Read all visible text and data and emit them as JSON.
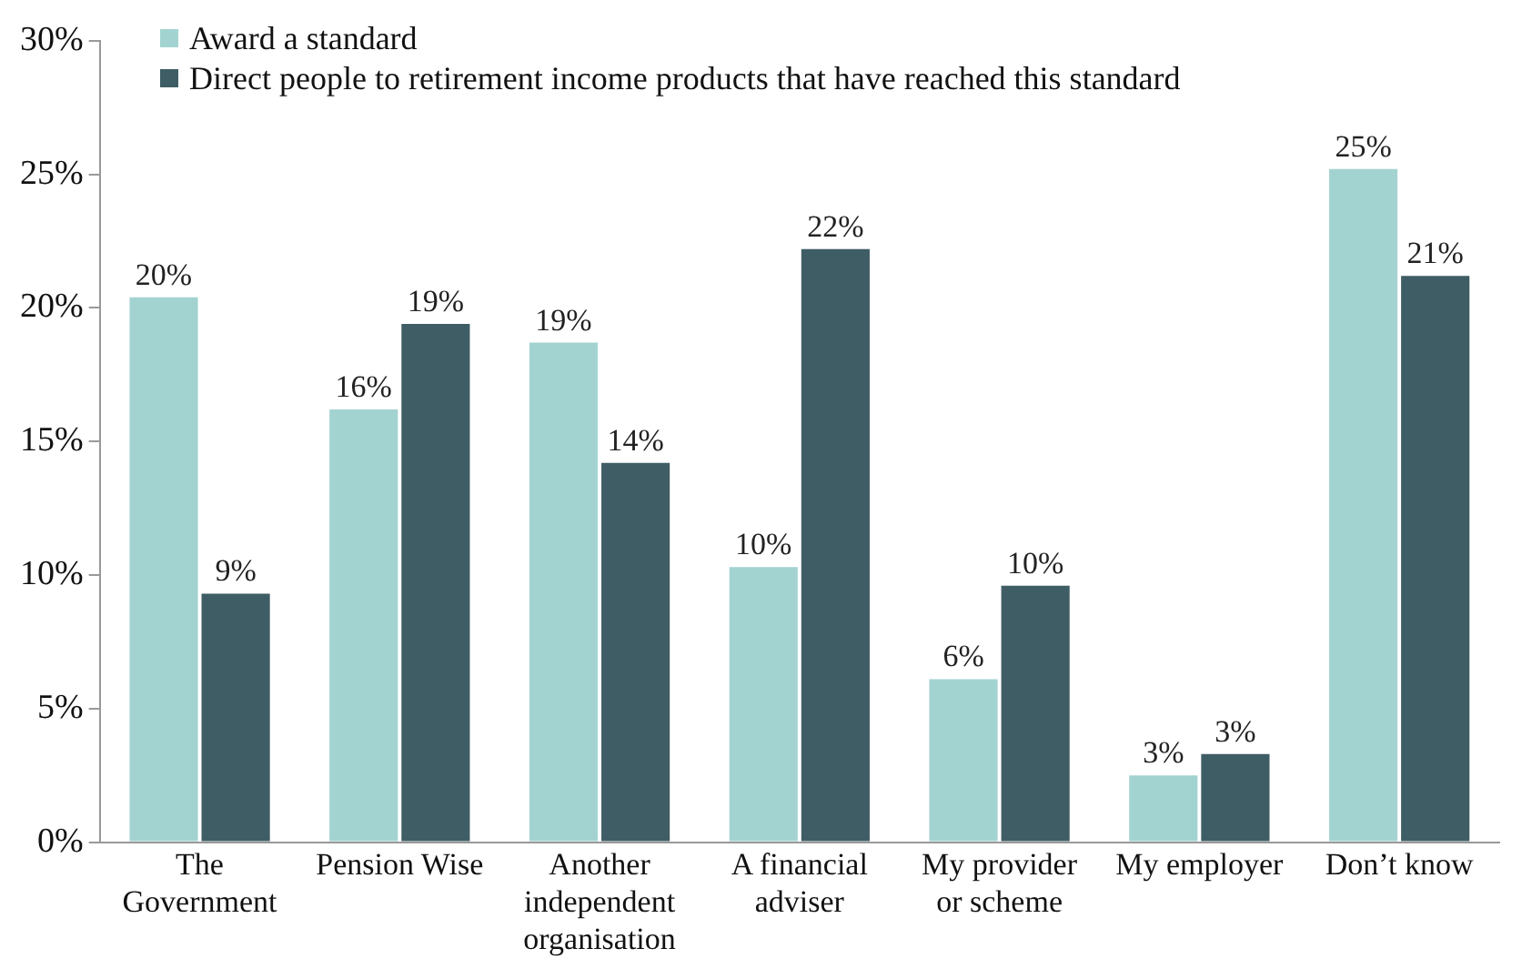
{
  "chart_data": {
    "type": "bar",
    "categories": [
      "The Government",
      "Pension Wise",
      "Another independent organisation",
      "A financial adviser",
      "My provider or scheme",
      "My employer",
      "Don’t know"
    ],
    "series": [
      {
        "name": "Award a standard",
        "color": "#a3d3d1",
        "values": [
          20.4,
          16.2,
          18.7,
          10.3,
          6.1,
          2.5,
          25.2
        ],
        "value_labels": [
          "20%",
          "16%",
          "19%",
          "10%",
          "6%",
          "3%",
          "25%"
        ]
      },
      {
        "name": "Direct people to retirement income products that have reached this standard",
        "color": "#3f5d65",
        "values": [
          9.3,
          19.4,
          14.2,
          22.2,
          9.6,
          3.3,
          21.2
        ],
        "value_labels": [
          "9%",
          "19%",
          "14%",
          "22%",
          "10%",
          "3%",
          "21%"
        ]
      }
    ],
    "ylim": [
      0,
      30
    ],
    "yticks": [
      {
        "value": 0,
        "label": "0%"
      },
      {
        "value": 5,
        "label": "5%"
      },
      {
        "value": 10,
        "label": "10%"
      },
      {
        "value": 15,
        "label": "15%"
      },
      {
        "value": 20,
        "label": "20%"
      },
      {
        "value": 25,
        "label": "25%"
      },
      {
        "value": 30,
        "label": "30%"
      }
    ],
    "grid": false,
    "legend": "top left"
  }
}
